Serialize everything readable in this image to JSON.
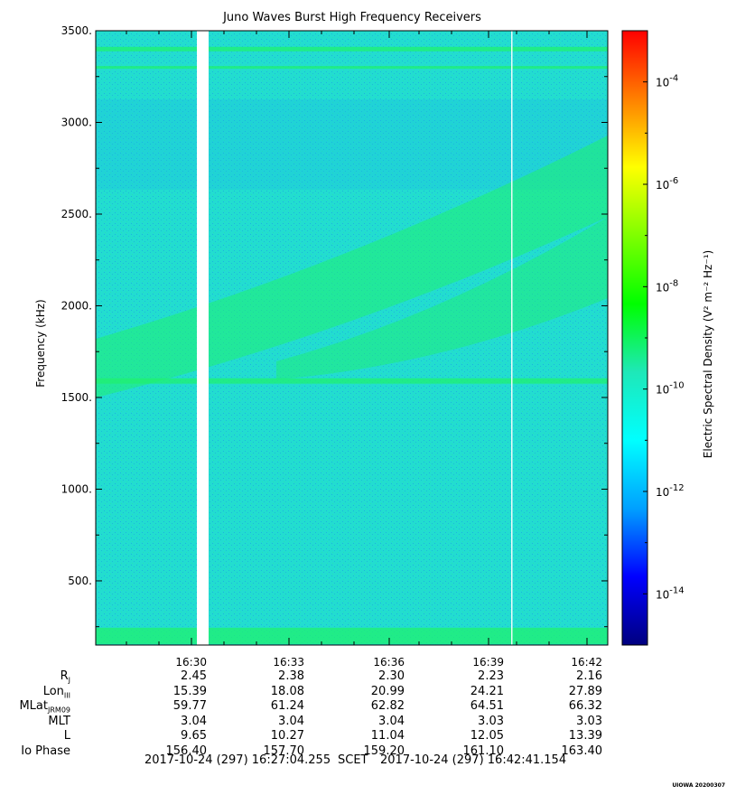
{
  "chart_data": {
    "type": "heatmap",
    "title": "Juno Waves Burst High Frequency Receivers",
    "ylabel": "Frequency (kHz)",
    "colorbar_label": "Electric Spectral Density (V² m⁻² Hz⁻¹)",
    "ylim": [
      150,
      3500
    ],
    "y_ticks": [
      500,
      1000,
      1500,
      2000,
      2500,
      3000,
      3500
    ],
    "y_tick_labels": [
      "500.",
      "1000.",
      "1500.",
      "2000.",
      "2500.",
      "3000.",
      "3500."
    ],
    "x_tick_labels": [
      "16:30",
      "16:33",
      "16:36",
      "16:39",
      "16:42"
    ],
    "colorbar_log_range": [
      -15,
      -3
    ],
    "colorbar_ticks": [
      -4,
      -6,
      -8,
      -10,
      -12,
      -14
    ],
    "colorbar_tick_labels": [
      "10",
      "10",
      "10",
      "10",
      "10",
      "10"
    ],
    "colorbar_tick_exponents": [
      "-4",
      "-6",
      "-8",
      "-10",
      "-12",
      "-14"
    ],
    "colormap": [
      "#00007f",
      "#0000ff",
      "#00a0ff",
      "#00ffff",
      "#1ee8b8",
      "#00ff00",
      "#7fff00",
      "#ffff00",
      "#ff8000",
      "#ff0000"
    ],
    "background_color": "#22ddd0",
    "emission_color": "#20f070"
  },
  "ephemeris": {
    "rows": [
      {
        "name": "R",
        "sub": "J",
        "values": [
          "2.45",
          "2.38",
          "2.30",
          "2.23",
          "2.16"
        ]
      },
      {
        "name": "Lon",
        "sub": "III",
        "values": [
          "15.39",
          "18.08",
          "20.99",
          "24.21",
          "27.89"
        ]
      },
      {
        "name": "MLat",
        "sub": "JRM09",
        "values": [
          "59.77",
          "61.24",
          "62.82",
          "64.51",
          "66.32"
        ]
      },
      {
        "name": "MLT",
        "sub": "",
        "values": [
          "3.04",
          "3.04",
          "3.04",
          "3.03",
          "3.03"
        ]
      },
      {
        "name": "L",
        "sub": "",
        "values": [
          "9.65",
          "10.27",
          "11.04",
          "12.05",
          "13.39"
        ]
      },
      {
        "name": "Io Phase",
        "sub": "",
        "values": [
          "156.40",
          "157.70",
          "159.20",
          "161.10",
          "163.40"
        ]
      }
    ]
  },
  "footer": {
    "start": "2017-10-24 (297) 16:27:04.255",
    "scet": "SCET",
    "end": "2017-10-24 (297) 16:42:41.154"
  },
  "credit": "UIOWA 20200307"
}
